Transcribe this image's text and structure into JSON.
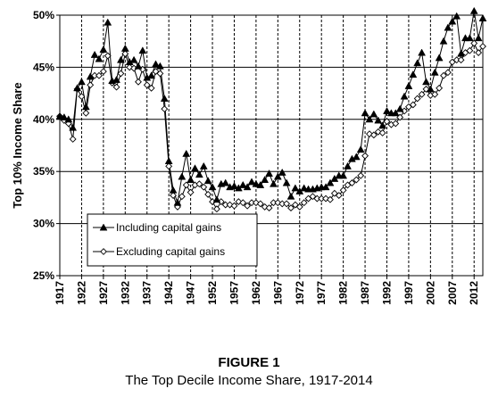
{
  "figure": {
    "label": "FIGURE 1",
    "caption": "The Top Decile Income Share, 1917-2014"
  },
  "chart_data": {
    "type": "line",
    "ylabel": "Top 10% Income Share",
    "xlabel": "",
    "xlim": [
      1917,
      2014
    ],
    "ylim": [
      25,
      50
    ],
    "ytick_labels": [
      "25%",
      "30%",
      "35%",
      "40%",
      "45%",
      "50%"
    ],
    "ytick_values": [
      25,
      30,
      35,
      40,
      45,
      50
    ],
    "xtick_labels": [
      "1917",
      "1922",
      "1927",
      "1932",
      "1937",
      "1942",
      "1947",
      "1952",
      "1957",
      "1962",
      "1967",
      "1972",
      "1977",
      "1982",
      "1987",
      "1992",
      "1997",
      "2002",
      "2007",
      "2012"
    ],
    "xtick_values": [
      1917,
      1922,
      1927,
      1932,
      1937,
      1942,
      1947,
      1952,
      1957,
      1962,
      1967,
      1972,
      1977,
      1982,
      1987,
      1992,
      1997,
      2002,
      2007,
      2012
    ],
    "grid": {
      "horizontal": "solid",
      "vertical": "dashed"
    },
    "legend_position": "lower-left",
    "x": [
      1917,
      1918,
      1919,
      1920,
      1921,
      1922,
      1923,
      1924,
      1925,
      1926,
      1927,
      1928,
      1929,
      1930,
      1931,
      1932,
      1933,
      1934,
      1935,
      1936,
      1937,
      1938,
      1939,
      1940,
      1941,
      1942,
      1943,
      1944,
      1945,
      1946,
      1947,
      1948,
      1949,
      1950,
      1951,
      1952,
      1953,
      1954,
      1955,
      1956,
      1957,
      1958,
      1959,
      1960,
      1961,
      1962,
      1963,
      1964,
      1965,
      1966,
      1967,
      1968,
      1969,
      1970,
      1971,
      1972,
      1973,
      1974,
      1975,
      1976,
      1977,
      1978,
      1979,
      1980,
      1981,
      1982,
      1983,
      1984,
      1985,
      1986,
      1987,
      1988,
      1989,
      1990,
      1991,
      1992,
      1993,
      1994,
      1995,
      1996,
      1997,
      1998,
      1999,
      2000,
      2001,
      2002,
      2003,
      2004,
      2005,
      2006,
      2007,
      2008,
      2009,
      2010,
      2011,
      2012,
      2013,
      2014
    ],
    "series": [
      {
        "name": "Including capital gains",
        "marker": "filled-triangle",
        "color": "#000000",
        "values": [
          40.3,
          40.2,
          40.0,
          39.2,
          43.0,
          43.6,
          41.2,
          44.1,
          46.2,
          45.8,
          46.7,
          49.3,
          43.7,
          43.8,
          45.7,
          46.8,
          45.5,
          45.7,
          45.1,
          46.6,
          44.0,
          44.2,
          45.3,
          45.1,
          42.0,
          36.0,
          33.2,
          32.0,
          34.5,
          36.7,
          34.2,
          35.3,
          34.7,
          35.5,
          34.1,
          33.5,
          32.3,
          33.8,
          33.9,
          33.5,
          33.6,
          33.4,
          33.7,
          33.5,
          34.0,
          33.8,
          33.7,
          34.2,
          34.8,
          33.8,
          34.5,
          34.9,
          33.9,
          32.6,
          33.4,
          33.1,
          33.4,
          33.3,
          33.3,
          33.4,
          33.5,
          33.5,
          33.9,
          34.3,
          34.6,
          34.6,
          35.5,
          36.2,
          36.4,
          37.1,
          40.6,
          40.0,
          40.5,
          39.9,
          39.4,
          40.8,
          40.6,
          40.6,
          41.0,
          42.2,
          43.2,
          44.3,
          45.4,
          46.4,
          43.6,
          42.9,
          44.5,
          45.9,
          47.5,
          48.8,
          49.4,
          49.9,
          46.3,
          47.8,
          47.8,
          50.4,
          47.8,
          49.7
        ]
      },
      {
        "name": "Excluding capital gains",
        "marker": "hollow-diamond",
        "color": "#000000",
        "values": [
          40.3,
          39.9,
          39.6,
          38.1,
          42.9,
          42.2,
          40.6,
          43.3,
          44.2,
          44.2,
          44.6,
          46.1,
          43.5,
          43.1,
          44.4,
          46.3,
          45.0,
          44.9,
          43.6,
          44.8,
          43.3,
          43.0,
          44.6,
          44.4,
          41.0,
          35.5,
          32.7,
          31.6,
          32.6,
          33.7,
          33.0,
          33.7,
          33.8,
          33.5,
          32.8,
          32.1,
          31.4,
          32.1,
          31.8,
          31.8,
          31.7,
          32.1,
          32.0,
          31.7,
          32.0,
          32.0,
          31.9,
          31.6,
          31.5,
          32.0,
          32.0,
          31.9,
          31.9,
          31.5,
          31.8,
          31.6,
          32.0,
          32.4,
          32.6,
          32.4,
          32.4,
          32.4,
          32.3,
          32.9,
          32.7,
          33.2,
          33.7,
          33.9,
          34.2,
          34.6,
          36.5,
          38.6,
          38.5,
          38.8,
          38.7,
          39.8,
          39.5,
          39.6,
          40.2,
          40.8,
          41.2,
          41.4,
          42.0,
          42.4,
          42.9,
          42.3,
          42.4,
          43.0,
          44.2,
          44.5,
          45.5,
          45.7,
          45.7,
          46.4,
          46.6,
          47.3,
          46.4,
          47.0
        ]
      }
    ]
  }
}
